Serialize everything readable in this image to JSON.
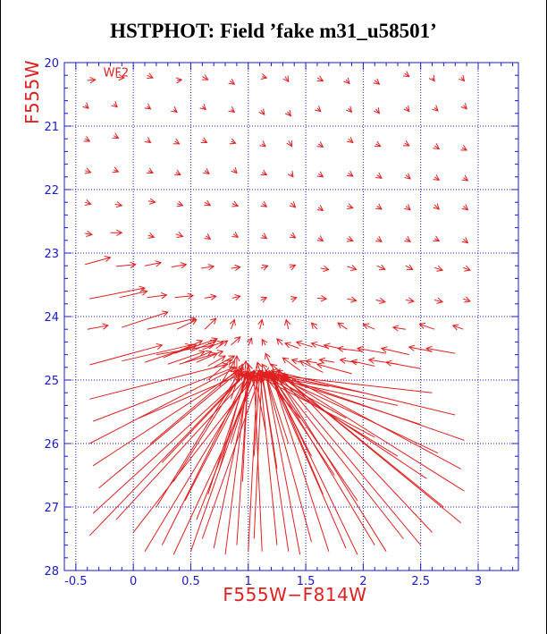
{
  "chart_data": {
    "type": "scatter",
    "variant": "vector-field",
    "title": "HSTPHOT: Field ’fake m31_u58501’",
    "xlabel": "F555W−F814W",
    "ylabel": "F555W",
    "xlim": [
      -0.6,
      3.35
    ],
    "ylim": [
      28,
      20
    ],
    "y_inverted": true,
    "grid": true,
    "grid_style": "dotted",
    "xticks": [
      -0.5,
      0,
      0.5,
      1,
      1.5,
      2,
      2.5,
      3
    ],
    "xtick_labels": [
      "-0.5",
      "0",
      "0.5",
      "1",
      "1.5",
      "2",
      "2.5",
      "3"
    ],
    "yticks": [
      20,
      21,
      22,
      23,
      24,
      25,
      26,
      27,
      28
    ],
    "ytick_labels": [
      "20",
      "21",
      "22",
      "23",
      "24",
      "25",
      "26",
      "27",
      "28"
    ],
    "annotations": [
      {
        "text": "WF2",
        "x": -0.15,
        "y": 20.22
      }
    ],
    "colors": {
      "axes": "#1a1acc",
      "data": "#e02020",
      "labels": "#e02020",
      "title": "#000000"
    },
    "vectors_note": "each vector: [x_start, y_start, x_end, y_end] in data units (color, magnitude)",
    "vectors": [
      [
        -0.4,
        20.28,
        -0.33,
        20.27
      ],
      [
        -0.15,
        20.23,
        -0.08,
        20.24
      ],
      [
        0.12,
        20.2,
        0.17,
        20.24
      ],
      [
        0.38,
        20.28,
        0.42,
        20.27
      ],
      [
        0.6,
        20.22,
        0.65,
        20.27
      ],
      [
        0.84,
        20.29,
        0.88,
        20.34
      ],
      [
        1.12,
        20.22,
        1.16,
        20.24
      ],
      [
        1.32,
        20.22,
        1.35,
        20.3
      ],
      [
        1.6,
        20.24,
        1.65,
        20.29
      ],
      [
        1.85,
        20.27,
        1.88,
        20.33
      ],
      [
        2.1,
        20.28,
        2.14,
        20.34
      ],
      [
        2.36,
        20.17,
        2.4,
        20.22
      ],
      [
        2.6,
        20.24,
        2.62,
        20.29
      ],
      [
        2.85,
        20.23,
        2.88,
        20.29
      ],
      [
        -0.42,
        20.67,
        -0.39,
        20.72
      ],
      [
        -0.17,
        20.65,
        -0.14,
        20.7
      ],
      [
        0.12,
        20.69,
        0.15,
        20.73
      ],
      [
        0.35,
        20.74,
        0.38,
        20.78
      ],
      [
        0.6,
        20.69,
        0.63,
        20.74
      ],
      [
        0.85,
        20.74,
        0.88,
        20.78
      ],
      [
        1.11,
        20.75,
        1.14,
        20.82
      ],
      [
        1.34,
        20.77,
        1.37,
        20.84
      ],
      [
        1.6,
        20.72,
        1.63,
        20.77
      ],
      [
        1.87,
        20.72,
        1.9,
        20.78
      ],
      [
        2.11,
        20.73,
        2.14,
        20.8
      ],
      [
        2.37,
        20.7,
        2.4,
        20.77
      ],
      [
        2.62,
        20.71,
        2.65,
        20.76
      ],
      [
        2.87,
        20.67,
        2.9,
        20.73
      ],
      [
        -0.42,
        21.2,
        -0.38,
        21.24
      ],
      [
        -0.17,
        21.15,
        -0.13,
        21.19
      ],
      [
        0.12,
        21.22,
        0.15,
        21.26
      ],
      [
        0.36,
        21.24,
        0.4,
        21.28
      ],
      [
        0.6,
        21.22,
        0.64,
        21.26
      ],
      [
        0.85,
        21.24,
        0.89,
        21.27
      ],
      [
        1.12,
        21.28,
        1.15,
        21.32
      ],
      [
        1.35,
        21.23,
        1.38,
        21.32
      ],
      [
        1.61,
        21.28,
        1.65,
        21.33
      ],
      [
        1.87,
        21.2,
        1.91,
        21.26
      ],
      [
        2.11,
        21.28,
        2.15,
        21.32
      ],
      [
        2.36,
        21.27,
        2.4,
        21.31
      ],
      [
        2.62,
        21.31,
        2.66,
        21.36
      ],
      [
        2.86,
        21.34,
        2.9,
        21.38
      ],
      [
        -0.42,
        21.7,
        -0.37,
        21.73
      ],
      [
        -0.17,
        21.69,
        -0.13,
        21.72
      ],
      [
        0.13,
        21.7,
        0.17,
        21.74
      ],
      [
        0.37,
        21.73,
        0.41,
        21.77
      ],
      [
        0.62,
        21.7,
        0.66,
        21.75
      ],
      [
        0.87,
        21.68,
        0.9,
        21.74
      ],
      [
        1.12,
        21.73,
        1.16,
        21.77
      ],
      [
        1.37,
        21.75,
        1.39,
        21.8
      ],
      [
        1.61,
        21.75,
        1.65,
        21.8
      ],
      [
        1.87,
        21.74,
        1.91,
        21.79
      ],
      [
        2.12,
        21.77,
        2.16,
        21.82
      ],
      [
        2.37,
        21.77,
        2.41,
        21.83
      ],
      [
        2.62,
        21.8,
        2.66,
        21.85
      ],
      [
        2.87,
        21.81,
        2.91,
        21.86
      ],
      [
        -0.42,
        22.2,
        -0.37,
        22.23
      ],
      [
        -0.16,
        22.23,
        -0.1,
        22.25
      ],
      [
        0.13,
        22.18,
        0.19,
        22.2
      ],
      [
        0.38,
        22.22,
        0.43,
        22.25
      ],
      [
        0.62,
        22.2,
        0.67,
        22.25
      ],
      [
        0.86,
        22.22,
        0.91,
        22.26
      ],
      [
        1.12,
        22.22,
        1.16,
        22.27
      ],
      [
        1.37,
        22.21,
        1.41,
        22.28
      ],
      [
        1.61,
        22.28,
        1.65,
        22.33
      ],
      [
        1.86,
        22.26,
        1.91,
        22.29
      ],
      [
        2.12,
        22.26,
        2.16,
        22.31
      ],
      [
        2.37,
        22.26,
        2.41,
        22.32
      ],
      [
        2.62,
        22.24,
        2.66,
        22.31
      ],
      [
        2.87,
        22.26,
        2.91,
        22.32
      ],
      [
        -0.42,
        22.69,
        -0.36,
        22.71
      ],
      [
        -0.2,
        22.68,
        -0.1,
        22.68
      ],
      [
        0.13,
        22.72,
        0.18,
        22.75
      ],
      [
        0.37,
        22.7,
        0.43,
        22.74
      ],
      [
        0.63,
        22.73,
        0.67,
        22.78
      ],
      [
        0.87,
        22.7,
        0.91,
        22.75
      ],
      [
        1.12,
        22.72,
        1.16,
        22.77
      ],
      [
        1.37,
        22.71,
        1.41,
        22.76
      ],
      [
        1.61,
        22.76,
        1.65,
        22.81
      ],
      [
        1.86,
        22.77,
        1.91,
        22.81
      ],
      [
        2.12,
        22.77,
        2.16,
        22.82
      ],
      [
        2.37,
        22.77,
        2.41,
        22.82
      ],
      [
        2.62,
        22.77,
        2.66,
        22.81
      ],
      [
        2.87,
        22.78,
        2.91,
        22.84
      ],
      [
        -0.42,
        23.18,
        -0.2,
        23.07
      ],
      [
        -0.15,
        23.21,
        0.02,
        23.18
      ],
      [
        0.1,
        23.2,
        0.24,
        23.15
      ],
      [
        0.33,
        23.22,
        0.46,
        23.18
      ],
      [
        0.59,
        23.24,
        0.7,
        23.21
      ],
      [
        0.85,
        23.24,
        0.93,
        23.22
      ],
      [
        1.11,
        23.24,
        1.17,
        23.2
      ],
      [
        1.36,
        23.23,
        1.41,
        23.19
      ],
      [
        1.63,
        23.24,
        1.7,
        23.26
      ],
      [
        1.86,
        23.21,
        1.94,
        23.26
      ],
      [
        2.12,
        23.2,
        2.19,
        23.26
      ],
      [
        2.37,
        23.2,
        2.43,
        23.26
      ],
      [
        2.62,
        23.23,
        2.69,
        23.27
      ],
      [
        2.87,
        23.23,
        2.93,
        23.27
      ],
      [
        -0.38,
        23.72,
        0.1,
        23.55
      ],
      [
        -0.12,
        23.7,
        0.12,
        23.6
      ],
      [
        0.12,
        23.7,
        0.29,
        23.66
      ],
      [
        0.36,
        23.7,
        0.52,
        23.67
      ],
      [
        0.62,
        23.71,
        0.72,
        23.68
      ],
      [
        0.86,
        23.71,
        0.93,
        23.68
      ],
      [
        1.11,
        23.74,
        1.16,
        23.7
      ],
      [
        1.37,
        23.73,
        1.42,
        23.7
      ],
      [
        1.6,
        23.71,
        1.68,
        23.72
      ],
      [
        1.86,
        23.72,
        1.94,
        23.75
      ],
      [
        2.11,
        23.74,
        2.19,
        23.77
      ],
      [
        2.37,
        23.74,
        2.44,
        23.76
      ],
      [
        2.62,
        23.74,
        2.69,
        23.77
      ],
      [
        2.87,
        23.72,
        2.93,
        23.76
      ],
      [
        -0.4,
        24.2,
        -0.22,
        24.14
      ],
      [
        -0.1,
        24.17,
        0.3,
        23.93
      ],
      [
        0.12,
        24.2,
        0.54,
        24.03
      ],
      [
        0.38,
        24.2,
        0.55,
        24.05
      ],
      [
        0.62,
        24.2,
        0.72,
        24.03
      ],
      [
        0.85,
        24.2,
        0.88,
        24.05
      ],
      [
        1.1,
        24.2,
        1.12,
        24.05
      ],
      [
        1.35,
        24.2,
        1.33,
        24.05
      ],
      [
        1.6,
        24.2,
        1.55,
        24.1
      ],
      [
        1.86,
        24.2,
        1.78,
        24.1
      ],
      [
        2.1,
        24.2,
        2.0,
        24.12
      ],
      [
        2.37,
        24.2,
        2.26,
        24.17
      ],
      [
        2.62,
        24.2,
        2.49,
        24.12
      ],
      [
        2.87,
        24.2,
        2.78,
        24.14
      ],
      [
        -0.38,
        24.76,
        0.25,
        24.45
      ],
      [
        -0.1,
        24.7,
        0.5,
        24.45
      ],
      [
        0.1,
        24.72,
        0.55,
        24.45
      ],
      [
        0.26,
        24.65,
        0.6,
        24.38
      ],
      [
        0.36,
        24.58,
        0.73,
        24.35
      ],
      [
        0.5,
        24.55,
        0.72,
        24.38
      ],
      [
        0.6,
        24.52,
        0.78,
        24.4
      ],
      [
        0.72,
        24.5,
        0.82,
        24.38
      ],
      [
        0.85,
        24.45,
        0.93,
        24.32
      ],
      [
        1.0,
        24.46,
        1.03,
        24.34
      ],
      [
        1.15,
        24.45,
        1.12,
        24.36
      ],
      [
        1.3,
        24.45,
        1.25,
        24.35
      ],
      [
        1.44,
        24.5,
        1.32,
        24.42
      ],
      [
        1.56,
        24.48,
        1.42,
        24.4
      ],
      [
        1.7,
        24.5,
        1.55,
        24.42
      ],
      [
        1.85,
        24.52,
        1.66,
        24.45
      ],
      [
        2.0,
        24.55,
        1.78,
        24.5
      ],
      [
        2.2,
        24.58,
        1.95,
        24.5
      ],
      [
        2.4,
        24.6,
        2.16,
        24.5
      ],
      [
        2.6,
        24.55,
        2.4,
        24.48
      ],
      [
        2.8,
        24.58,
        2.55,
        24.5
      ],
      [
        2.5,
        24.82,
        2.2,
        24.72
      ],
      [
        2.3,
        24.75,
        2.05,
        24.68
      ],
      [
        2.1,
        24.78,
        1.9,
        24.7
      ],
      [
        1.95,
        24.73,
        1.8,
        24.68
      ],
      [
        1.75,
        24.72,
        1.62,
        24.68
      ],
      [
        1.6,
        24.73,
        1.5,
        24.7
      ],
      [
        1.45,
        24.72,
        1.38,
        24.68
      ],
      [
        0.3,
        24.75,
        0.62,
        24.55
      ],
      [
        0.45,
        24.72,
        0.68,
        24.55
      ],
      [
        0.55,
        24.72,
        0.73,
        24.58
      ],
      [
        0.65,
        24.78,
        0.8,
        24.62
      ],
      [
        -0.38,
        25.3,
        0.82,
        24.75
      ],
      [
        -0.35,
        25.65,
        0.88,
        24.8
      ],
      [
        -0.38,
        26.0,
        0.9,
        24.8
      ],
      [
        -0.35,
        26.35,
        0.92,
        24.85
      ],
      [
        -0.3,
        26.7,
        0.95,
        24.82
      ],
      [
        -0.35,
        27.1,
        0.98,
        24.9
      ],
      [
        -0.38,
        27.45,
        1.0,
        24.85
      ],
      [
        -0.15,
        27.2,
        1.02,
        24.9
      ],
      [
        0.0,
        27.4,
        1.05,
        24.95
      ],
      [
        0.1,
        27.7,
        1.05,
        24.85
      ],
      [
        0.25,
        27.6,
        1.0,
        24.88
      ],
      [
        0.35,
        27.75,
        1.08,
        24.92
      ],
      [
        0.5,
        27.7,
        1.05,
        24.85
      ],
      [
        0.6,
        27.5,
        1.1,
        24.95
      ],
      [
        0.7,
        27.65,
        1.02,
        24.9
      ],
      [
        0.8,
        27.75,
        1.0,
        24.85
      ],
      [
        0.9,
        27.6,
        1.0,
        24.9
      ],
      [
        1.0,
        27.7,
        1.08,
        24.88
      ],
      [
        1.05,
        27.5,
        1.12,
        24.85
      ],
      [
        1.12,
        27.7,
        1.05,
        24.9
      ],
      [
        1.25,
        27.6,
        1.1,
        24.85
      ],
      [
        1.35,
        27.7,
        1.12,
        24.9
      ],
      [
        1.45,
        27.75,
        1.15,
        24.88
      ],
      [
        1.55,
        27.55,
        1.15,
        24.92
      ],
      [
        1.7,
        27.7,
        1.2,
        24.9
      ],
      [
        1.85,
        27.65,
        1.2,
        24.95
      ],
      [
        1.95,
        27.75,
        1.18,
        24.85
      ],
      [
        2.1,
        27.6,
        1.2,
        24.9
      ],
      [
        2.2,
        27.7,
        1.25,
        24.95
      ],
      [
        2.35,
        27.5,
        1.22,
        24.9
      ],
      [
        2.5,
        27.6,
        1.28,
        24.95
      ],
      [
        2.6,
        27.4,
        1.3,
        24.9
      ],
      [
        2.85,
        27.25,
        1.3,
        24.95
      ],
      [
        2.7,
        27.0,
        1.28,
        24.92
      ],
      [
        2.88,
        26.75,
        1.25,
        24.9
      ],
      [
        2.55,
        26.55,
        1.22,
        24.95
      ],
      [
        2.85,
        26.4,
        1.25,
        24.85
      ],
      [
        2.65,
        26.15,
        1.2,
        24.9
      ],
      [
        2.88,
        25.95,
        1.18,
        24.88
      ],
      [
        2.5,
        25.7,
        1.15,
        24.9
      ],
      [
        2.8,
        25.55,
        1.2,
        24.85
      ],
      [
        2.6,
        25.2,
        1.12,
        24.9
      ],
      [
        2.3,
        25.4,
        1.15,
        24.95
      ],
      [
        2.0,
        25.2,
        1.18,
        24.9
      ],
      [
        1.7,
        25.1,
        1.2,
        24.95
      ],
      [
        1.85,
        25.6,
        1.15,
        24.9
      ],
      [
        2.1,
        25.9,
        1.1,
        24.95
      ],
      [
        2.3,
        26.2,
        1.08,
        24.85
      ],
      [
        0.05,
        25.6,
        0.95,
        24.9
      ],
      [
        0.15,
        26.0,
        0.9,
        24.85
      ],
      [
        0.25,
        26.3,
        0.98,
        24.9
      ],
      [
        0.35,
        26.6,
        0.95,
        24.88
      ],
      [
        0.45,
        26.9,
        1.02,
        24.9
      ],
      [
        0.2,
        27.0,
        0.95,
        24.8
      ],
      [
        0.55,
        27.2,
        1.05,
        24.9
      ],
      [
        0.65,
        26.8,
        1.0,
        24.85
      ],
      [
        0.75,
        26.4,
        0.98,
        24.9
      ],
      [
        0.85,
        26.0,
        1.05,
        24.85
      ],
      [
        0.95,
        26.6,
        1.0,
        24.88
      ],
      [
        1.05,
        26.2,
        1.1,
        24.9
      ],
      [
        1.15,
        25.8,
        1.05,
        24.85
      ],
      [
        1.25,
        26.4,
        1.12,
        24.88
      ],
      [
        1.35,
        26.0,
        1.15,
        24.9
      ],
      [
        1.45,
        25.6,
        1.1,
        24.85
      ],
      [
        1.55,
        26.2,
        1.18,
        24.9
      ],
      [
        1.65,
        26.8,
        1.2,
        24.88
      ],
      [
        1.75,
        26.5,
        1.15,
        24.85
      ],
      [
        1.95,
        26.9,
        1.2,
        24.92
      ],
      [
        0.85,
        25.3,
        0.95,
        24.75
      ],
      [
        0.95,
        25.2,
        0.98,
        24.7
      ],
      [
        1.05,
        25.1,
        1.0,
        24.75
      ],
      [
        1.15,
        25.2,
        1.08,
        24.72
      ],
      [
        1.25,
        25.1,
        1.12,
        24.75
      ],
      [
        1.4,
        25.05,
        1.2,
        24.75
      ],
      [
        0.75,
        25.1,
        0.88,
        24.7
      ],
      [
        0.65,
        25.0,
        0.85,
        24.68
      ],
      [
        0.92,
        24.78,
        0.95,
        24.95
      ],
      [
        1.0,
        24.75,
        1.0,
        24.95
      ],
      [
        1.08,
        24.78,
        1.05,
        24.95
      ],
      [
        1.18,
        24.8,
        1.12,
        24.95
      ],
      [
        1.28,
        24.82,
        1.2,
        24.95
      ],
      [
        0.88,
        24.88,
        0.92,
        25.02
      ],
      [
        1.1,
        24.9,
        1.12,
        25.02
      ],
      [
        1.32,
        24.88,
        1.3,
        25.05
      ],
      [
        0.2,
        24.6,
        0.7,
        24.45
      ],
      [
        0.4,
        24.75,
        0.78,
        24.55
      ],
      [
        0.7,
        24.8,
        0.88,
        24.62
      ],
      [
        0.9,
        24.85,
        0.9,
        24.62
      ],
      [
        1.2,
        24.78,
        1.15,
        24.58
      ],
      [
        1.45,
        24.85,
        1.3,
        24.65
      ],
      [
        1.65,
        24.88,
        1.45,
        24.7
      ],
      [
        1.9,
        24.9,
        1.6,
        24.75
      ]
    ]
  }
}
